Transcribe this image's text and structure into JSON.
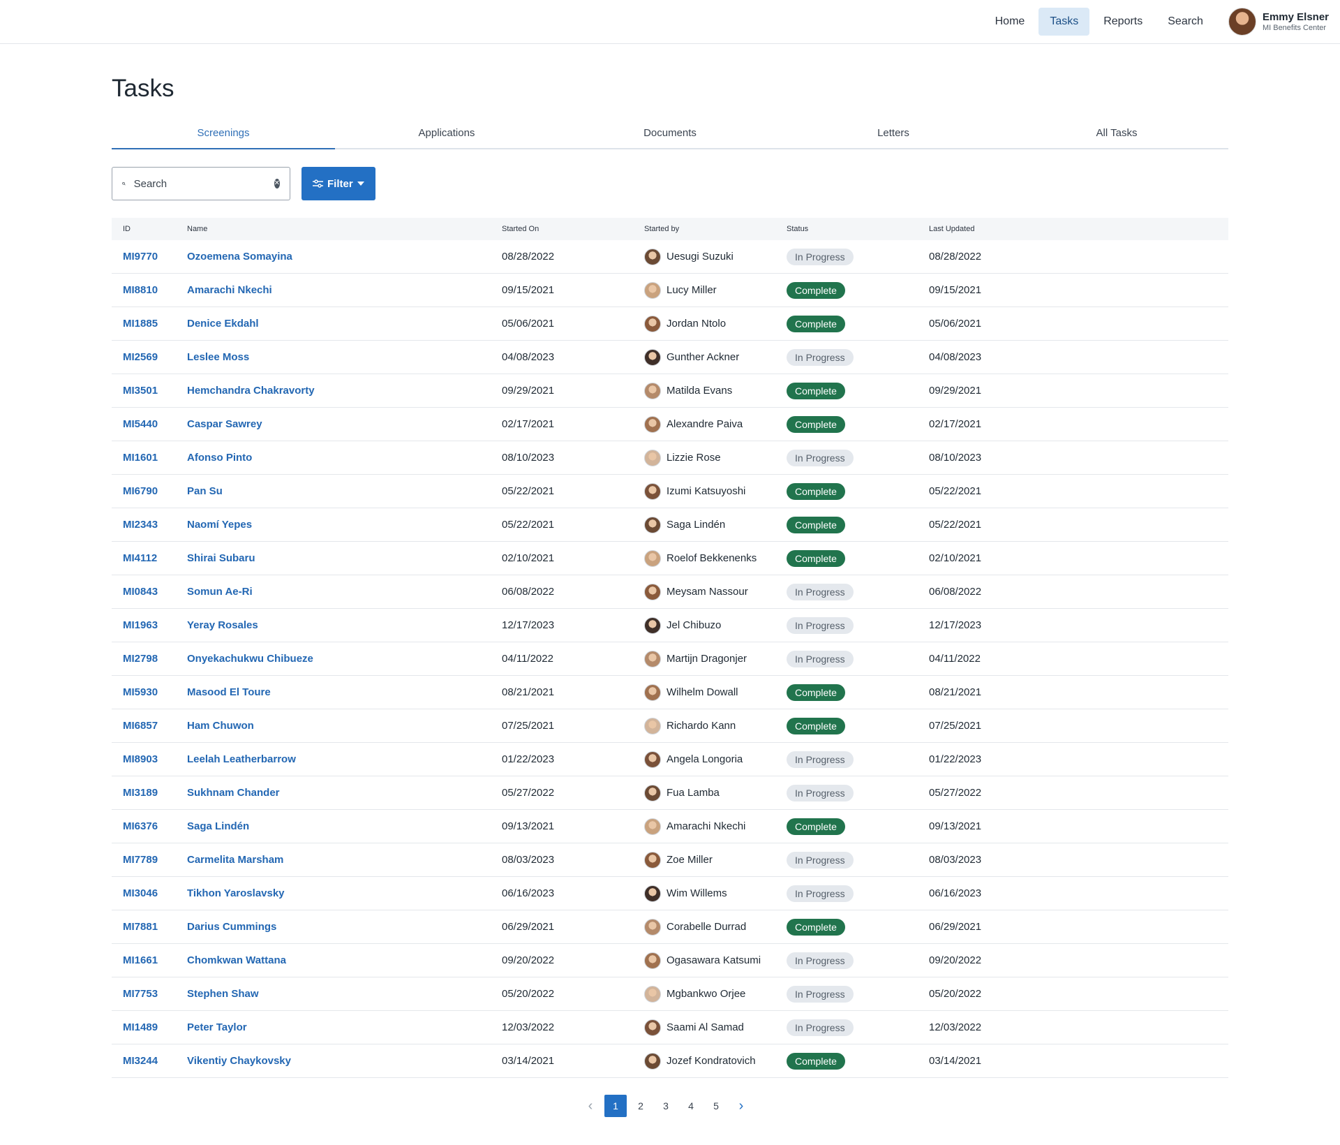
{
  "nav": {
    "items": [
      {
        "label": "Home",
        "active": false
      },
      {
        "label": "Tasks",
        "active": true
      },
      {
        "label": "Reports",
        "active": false
      },
      {
        "label": "Search",
        "active": false
      }
    ],
    "user": {
      "name": "Emmy Elsner",
      "org": "MI Benefits Center"
    }
  },
  "page": {
    "title": "Tasks",
    "tabs": [
      {
        "label": "Screenings",
        "active": true
      },
      {
        "label": "Applications",
        "active": false
      },
      {
        "label": "Documents",
        "active": false
      },
      {
        "label": "Letters",
        "active": false
      },
      {
        "label": "All Tasks",
        "active": false
      }
    ],
    "search_placeholder": "Search",
    "filter_label": "Filter"
  },
  "table": {
    "headers": [
      "ID",
      "Name",
      "Started On",
      "Started by",
      "Status",
      "Last Updated"
    ],
    "rows": [
      {
        "id": "MI9770",
        "name": "Ozoemena Somayina",
        "started_on": "08/28/2022",
        "started_by": "Uesugi Suzuki",
        "status": "In Progress",
        "last_updated": "08/28/2022"
      },
      {
        "id": "MI8810",
        "name": "Amarachi Nkechi",
        "started_on": "09/15/2021",
        "started_by": "Lucy Miller",
        "status": "Complete",
        "last_updated": "09/15/2021"
      },
      {
        "id": "MI1885",
        "name": "Denice Ekdahl",
        "started_on": "05/06/2021",
        "started_by": "Jordan Ntolo",
        "status": "Complete",
        "last_updated": "05/06/2021"
      },
      {
        "id": "MI2569",
        "name": "Leslee Moss",
        "started_on": "04/08/2023",
        "started_by": "Gunther Ackner",
        "status": "In Progress",
        "last_updated": "04/08/2023"
      },
      {
        "id": "MI3501",
        "name": "Hemchandra Chakravorty",
        "started_on": "09/29/2021",
        "started_by": "Matilda Evans",
        "status": "Complete",
        "last_updated": "09/29/2021"
      },
      {
        "id": "MI5440",
        "name": "Caspar Sawrey",
        "started_on": "02/17/2021",
        "started_by": "Alexandre Paiva",
        "status": "Complete",
        "last_updated": "02/17/2021"
      },
      {
        "id": "MI1601",
        "name": "Afonso Pinto",
        "started_on": "08/10/2023",
        "started_by": "Lizzie Rose",
        "status": "In Progress",
        "last_updated": "08/10/2023"
      },
      {
        "id": "MI6790",
        "name": "Pan Su",
        "started_on": "05/22/2021",
        "started_by": "Izumi Katsuyoshi",
        "status": "Complete",
        "last_updated": "05/22/2021"
      },
      {
        "id": "MI2343",
        "name": "Naomí Yepes",
        "started_on": "05/22/2021",
        "started_by": "Saga Lindén",
        "status": "Complete",
        "last_updated": "05/22/2021"
      },
      {
        "id": "MI4112",
        "name": "Shirai Subaru",
        "started_on": "02/10/2021",
        "started_by": "Roelof Bekkenenks",
        "status": "Complete",
        "last_updated": "02/10/2021"
      },
      {
        "id": "MI0843",
        "name": "Somun Ae-Ri",
        "started_on": "06/08/2022",
        "started_by": "Meysam Nassour",
        "status": "In Progress",
        "last_updated": "06/08/2022"
      },
      {
        "id": "MI1963",
        "name": "Yeray Rosales",
        "started_on": "12/17/2023",
        "started_by": "Jel Chibuzo",
        "status": "In Progress",
        "last_updated": "12/17/2023"
      },
      {
        "id": "MI2798",
        "name": "Onyekachukwu Chibueze",
        "started_on": "04/11/2022",
        "started_by": "Martijn Dragonjer",
        "status": "In Progress",
        "last_updated": "04/11/2022"
      },
      {
        "id": "MI5930",
        "name": "Masood El Toure",
        "started_on": "08/21/2021",
        "started_by": "Wilhelm Dowall",
        "status": "Complete",
        "last_updated": "08/21/2021"
      },
      {
        "id": "MI6857",
        "name": "Ham Chuwon",
        "started_on": "07/25/2021",
        "started_by": "Richardo Kann",
        "status": "Complete",
        "last_updated": "07/25/2021"
      },
      {
        "id": "MI8903",
        "name": "Leelah Leatherbarrow",
        "started_on": "01/22/2023",
        "started_by": "Angela Longoria",
        "status": "In Progress",
        "last_updated": "01/22/2023"
      },
      {
        "id": "MI3189",
        "name": "Sukhnam Chander",
        "started_on": "05/27/2022",
        "started_by": "Fua Lamba",
        "status": "In Progress",
        "last_updated": "05/27/2022"
      },
      {
        "id": "MI6376",
        "name": "Saga Lindén",
        "started_on": "09/13/2021",
        "started_by": "Amarachi Nkechi",
        "status": "Complete",
        "last_updated": "09/13/2021"
      },
      {
        "id": "MI7789",
        "name": "Carmelita Marsham",
        "started_on": "08/03/2023",
        "started_by": "Zoe Miller",
        "status": "In Progress",
        "last_updated": "08/03/2023"
      },
      {
        "id": "MI3046",
        "name": "Tikhon Yaroslavsky",
        "started_on": "06/16/2023",
        "started_by": "Wim Willems",
        "status": "In Progress",
        "last_updated": "06/16/2023"
      },
      {
        "id": "MI7881",
        "name": "Darius Cummings",
        "started_on": "06/29/2021",
        "started_by": "Corabelle Durrad",
        "status": "Complete",
        "last_updated": "06/29/2021"
      },
      {
        "id": "MI1661",
        "name": "Chomkwan Wattana",
        "started_on": "09/20/2022",
        "started_by": "Ogasawara Katsumi",
        "status": "In Progress",
        "last_updated": "09/20/2022"
      },
      {
        "id": "MI7753",
        "name": "Stephen Shaw",
        "started_on": "05/20/2022",
        "started_by": "Mgbankwo Orjee",
        "status": "In Progress",
        "last_updated": "05/20/2022"
      },
      {
        "id": "MI1489",
        "name": "Peter Taylor",
        "started_on": "12/03/2022",
        "started_by": "Saami Al Samad",
        "status": "In Progress",
        "last_updated": "12/03/2022"
      },
      {
        "id": "MI3244",
        "name": "Vikentiy Chaykovsky",
        "started_on": "03/14/2021",
        "started_by": "Jozef Kondratovich",
        "status": "Complete",
        "last_updated": "03/14/2021"
      }
    ]
  },
  "pagination": {
    "pages": [
      "1",
      "2",
      "3",
      "4",
      "5"
    ],
    "current": "1"
  },
  "colors": {
    "accent": "#2370c4",
    "complete": "#21744d",
    "in_progress": "#e4e8ed"
  },
  "icons": {
    "search": "search-icon",
    "clear": "clear-icon",
    "filter": "sliders-icon",
    "caret": "caret-down-icon",
    "prev": "chevron-left-icon",
    "next": "chevron-right-icon"
  }
}
